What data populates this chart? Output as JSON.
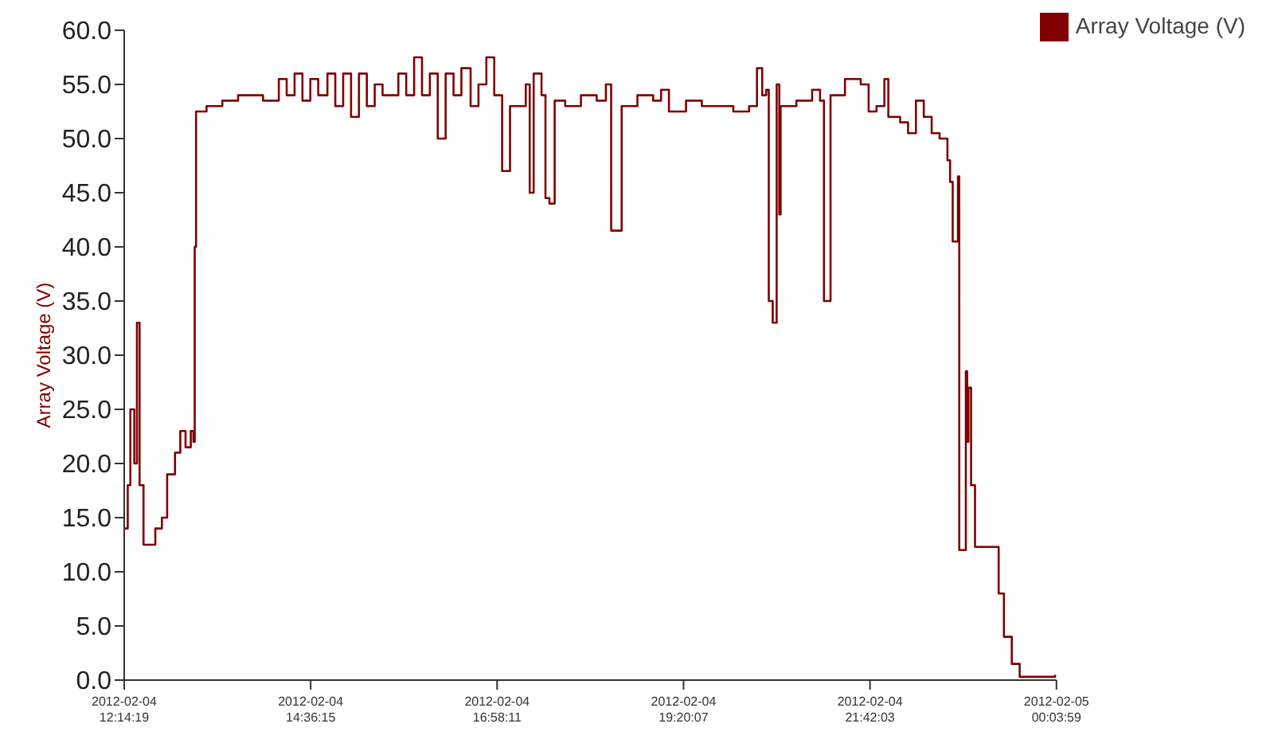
{
  "chart_data": {
    "type": "step",
    "ylabel": "Array Voltage (V)",
    "legend": "top right",
    "marker": "none",
    "line_style": "solid",
    "xlim": [
      "2012-02-04T12:14:19",
      "2012-02-05T00:03:59"
    ],
    "xticks": [
      {
        "value": "2012-02-04T12:14:19",
        "label": "2012-02-04 12:14:19"
      },
      {
        "value": "2012-02-04T14:36:15",
        "label": "2012-02-04 14:36:15"
      },
      {
        "value": "2012-02-04T16:58:11",
        "label": "2012-02-04 16:58:11"
      },
      {
        "value": "2012-02-04T19:20:07",
        "label": "2012-02-04 19:20:07"
      },
      {
        "value": "2012-02-04T21:42:03",
        "label": "2012-02-04 21:42:03"
      },
      {
        "value": "2012-02-05T00:03:59",
        "label": "2012-02-05 00:03:59"
      }
    ],
    "ylim": [
      0,
      60
    ],
    "yticks": [
      {
        "value": 0,
        "label": "0.0"
      },
      {
        "value": 5,
        "label": "5.0"
      },
      {
        "value": 10,
        "label": "10.0"
      },
      {
        "value": 15,
        "label": "15.0"
      },
      {
        "value": 20,
        "label": "20.0"
      },
      {
        "value": 25,
        "label": "25.0"
      },
      {
        "value": 30,
        "label": "30.0"
      },
      {
        "value": 35,
        "label": "35.0"
      },
      {
        "value": 40,
        "label": "40.0"
      },
      {
        "value": 45,
        "label": "45.0"
      },
      {
        "value": 50,
        "label": "50.0"
      },
      {
        "value": 55,
        "label": "55.0"
      },
      {
        "value": 60,
        "label": "60.0"
      }
    ],
    "x": [
      "2012-02-04T12:15",
      "2012-02-04T12:17",
      "2012-02-04T12:19",
      "2012-02-04T12:22",
      "2012-02-04T12:24",
      "2012-02-04T12:26",
      "2012-02-04T12:29",
      "2012-02-04T12:35",
      "2012-02-04T12:38",
      "2012-02-04T12:43",
      "2012-02-04T12:47",
      "2012-02-04T12:53",
      "2012-02-04T12:57",
      "2012-02-04T13:01",
      "2012-02-04T13:05",
      "2012-02-04T13:07",
      "2012-02-04T13:08",
      "2012-02-04T13:09",
      "2012-02-04T13:17",
      "2012-02-04T13:29",
      "2012-02-04T13:41",
      "2012-02-04T13:54",
      "2012-02-04T14:00",
      "2012-02-04T14:12",
      "2012-02-04T14:18",
      "2012-02-04T14:24",
      "2012-02-04T14:30",
      "2012-02-04T14:36",
      "2012-02-04T14:42",
      "2012-02-04T14:49",
      "2012-02-04T14:55",
      "2012-02-04T15:01",
      "2012-02-04T15:07",
      "2012-02-04T15:13",
      "2012-02-04T15:19",
      "2012-02-04T15:25",
      "2012-02-04T15:31",
      "2012-02-04T15:43",
      "2012-02-04T15:49",
      "2012-02-04T15:55",
      "2012-02-04T16:01",
      "2012-02-04T16:07",
      "2012-02-04T16:13",
      "2012-02-04T16:19",
      "2012-02-04T16:25",
      "2012-02-04T16:31",
      "2012-02-04T16:38",
      "2012-02-04T16:44",
      "2012-02-04T16:50",
      "2012-02-04T16:56",
      "2012-02-04T17:02",
      "2012-02-04T17:08",
      "2012-02-04T17:20",
      "2012-02-04T17:23",
      "2012-02-04T17:26",
      "2012-02-04T17:32",
      "2012-02-04T17:35",
      "2012-02-04T17:38",
      "2012-02-04T17:42",
      "2012-02-04T17:50",
      "2012-02-04T18:02",
      "2012-02-04T18:14",
      "2012-02-04T18:21",
      "2012-02-04T18:25",
      "2012-02-04T18:31",
      "2012-02-04T18:33",
      "2012-02-04T18:45",
      "2012-02-04T18:57",
      "2012-02-04T19:03",
      "2012-02-04T19:09",
      "2012-02-04T19:22",
      "2012-02-04T19:34",
      "2012-02-04T19:46",
      "2012-02-04T19:58",
      "2012-02-04T20:10",
      "2012-02-04T20:16",
      "2012-02-04T20:20",
      "2012-02-04T20:23",
      "2012-02-04T20:25",
      "2012-02-04T20:28",
      "2012-02-04T20:31",
      "2012-02-04T20:33",
      "2012-02-04T20:34",
      "2012-02-04T20:46",
      "2012-02-04T20:58",
      "2012-02-04T21:04",
      "2012-02-04T21:07",
      "2012-02-04T21:11",
      "2012-02-04T21:12",
      "2012-02-04T21:23",
      "2012-02-04T21:35",
      "2012-02-04T21:41",
      "2012-02-04T21:47",
      "2012-02-04T21:53",
      "2012-02-04T21:56",
      "2012-02-04T22:05",
      "2012-02-04T22:11",
      "2012-02-04T22:17",
      "2012-02-04T22:23",
      "2012-02-04T22:29",
      "2012-02-04T22:35",
      "2012-02-04T22:41",
      "2012-02-04T22:43",
      "2012-02-04T22:45",
      "2012-02-04T22:49",
      "2012-02-04T22:50",
      "2012-02-04T22:52",
      "2012-02-04T22:55",
      "2012-02-04T22:56",
      "2012-02-04T22:57",
      "2012-02-04T22:59",
      "2012-02-04T23:02",
      "2012-02-04T23:18",
      "2012-02-04T23:20",
      "2012-02-04T23:24",
      "2012-02-04T23:30",
      "2012-02-04T23:36",
      "2012-02-05T00:01",
      "2012-02-05T00:03"
    ],
    "series": [
      {
        "name": "Array Voltage (V)",
        "color": "#800000",
        "values": [
          14,
          18,
          25,
          20,
          33,
          18,
          12.5,
          12.5,
          14,
          15,
          19,
          21,
          23,
          21.5,
          23,
          22,
          40,
          52.5,
          53,
          53.5,
          54,
          54,
          53.5,
          55.5,
          54,
          56,
          53.5,
          55.5,
          54,
          56,
          53,
          56,
          52,
          56,
          53,
          55,
          54,
          56,
          54,
          57.5,
          54,
          56,
          50,
          56,
          54,
          56.5,
          53,
          55,
          57.5,
          54,
          47,
          53,
          55,
          45,
          56,
          54,
          44.5,
          44,
          53.5,
          53,
          54,
          53.5,
          55,
          41.5,
          41.5,
          53,
          54,
          53.5,
          54.5,
          52.5,
          53.5,
          53,
          53,
          52.5,
          53,
          56.5,
          54,
          54.5,
          35,
          33,
          55,
          43,
          53,
          53.5,
          54.5,
          53.5,
          35,
          35,
          54,
          55.5,
          55,
          52.5,
          53,
          55.5,
          52,
          51.5,
          50.5,
          53.5,
          52,
          50.5,
          50,
          48,
          46,
          40.5,
          46.5,
          12,
          12,
          28.5,
          22,
          27,
          18,
          12.3,
          12.3,
          8,
          4,
          1.5,
          0.3,
          0.3,
          0.5
        ]
      }
    ]
  }
}
